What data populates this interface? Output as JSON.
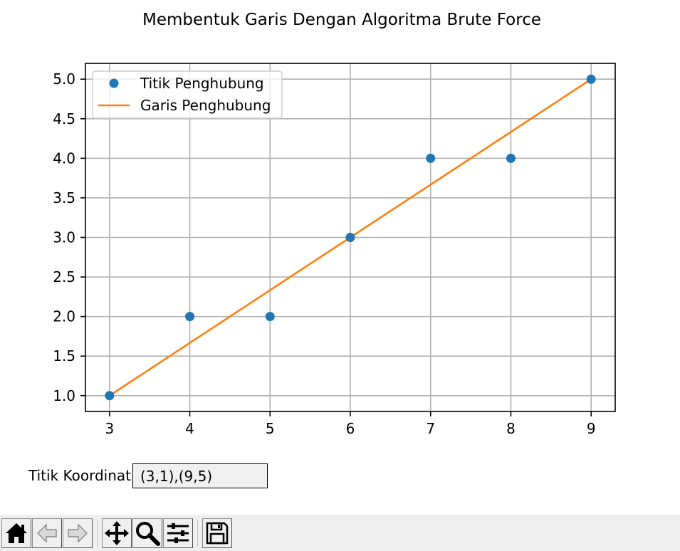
{
  "chart_data": {
    "type": "line",
    "title": "Membentuk Garis Dengan Algoritma Brute Force",
    "xlabel": "",
    "ylabel": "",
    "xlim": [
      2.7,
      9.3
    ],
    "ylim": [
      0.8,
      5.2
    ],
    "xticks": [
      3,
      4,
      5,
      6,
      7,
      8,
      9
    ],
    "yticks": [
      1.0,
      1.5,
      2.0,
      2.5,
      3.0,
      3.5,
      4.0,
      4.5,
      5.0
    ],
    "grid": true,
    "legend_position": "upper-left",
    "series": [
      {
        "name": "Titik Penghubung",
        "kind": "scatter",
        "color": "#1f77b4",
        "x": [
          3,
          4,
          5,
          6,
          7,
          8,
          9
        ],
        "y": [
          1,
          2,
          2,
          3,
          4,
          4,
          5
        ]
      },
      {
        "name": "Garis Penghubung",
        "kind": "line",
        "color": "#ff7f0e",
        "x": [
          3,
          9
        ],
        "y": [
          1,
          5
        ]
      }
    ]
  },
  "textbox": {
    "label": "Titik Koordinat",
    "value": "(3,1),(9,5)"
  },
  "toolbar": {
    "buttons": [
      {
        "name": "home-icon",
        "label": "Home"
      },
      {
        "name": "back-icon",
        "label": "Back"
      },
      {
        "name": "forward-icon",
        "label": "Forward"
      },
      {
        "name": "pan-icon",
        "label": "Pan"
      },
      {
        "name": "zoom-icon",
        "label": "Zoom"
      },
      {
        "name": "configure-subplots-icon",
        "label": "Configure subplots"
      },
      {
        "name": "save-icon",
        "label": "Save"
      }
    ]
  }
}
